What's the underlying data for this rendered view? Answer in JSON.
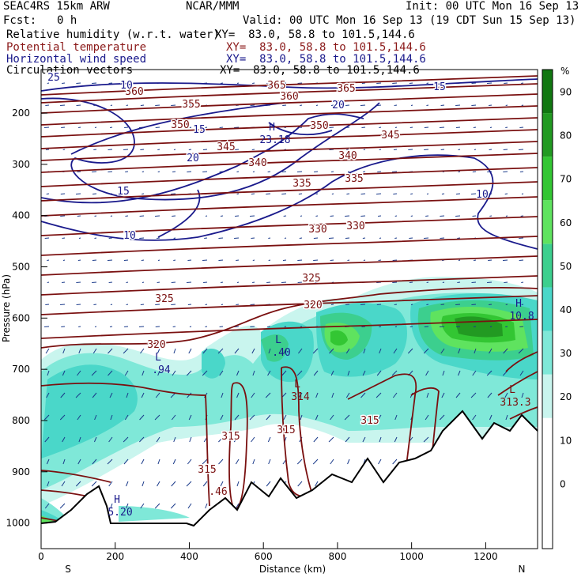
{
  "header": {
    "model": "SEAC4RS 15km ARW",
    "org": "NCAR/MMM",
    "init": "Init: 00 UTC Mon 16 Sep 13",
    "fcst_label": "Fcst:",
    "fcst_value": "0 h",
    "valid": "Valid: 00 UTC Mon 16 Sep 13 (19 CDT Sun 15 Sep 13)",
    "fields": [
      {
        "name": "Relative humidity (w.r.t. water)",
        "xy": "XY=  83.0, 58.8 to 101.5,144.6",
        "color": "#000000"
      },
      {
        "name": "Potential temperature",
        "xy": "XY=  83.0, 58.8 to 101.5,144.6",
        "color": "#8b1a1a"
      },
      {
        "name": "Horizontal wind speed",
        "xy": "XY=  83.0, 58.8 to 101.5,144.6",
        "color": "#1a1a8c"
      },
      {
        "name": "Circulation vectors",
        "xy": "XY=  83.0, 58.8 to 101.5,144.6",
        "color": "#000000"
      }
    ]
  },
  "chart_data": {
    "type": "heatmap",
    "title": "",
    "xlabel": "Distance (km)",
    "ylabel": "Pressure (hPa)",
    "x_ticks": [
      0,
      200,
      400,
      600,
      800,
      1000,
      1200
    ],
    "y_ticks": [
      200,
      300,
      400,
      500,
      600,
      700,
      800,
      900,
      1000
    ],
    "xlim": [
      0,
      1340
    ],
    "ylim": [
      1050,
      115
    ],
    "x_end_labels": {
      "left": "S",
      "right": "N"
    },
    "colorbar": {
      "unit": "%",
      "tick_labels": [
        "90",
        "80",
        "70",
        "60",
        "50",
        "40",
        "30",
        "20",
        "10",
        "0"
      ],
      "levels": [
        -10,
        0,
        10,
        20,
        30,
        40,
        50,
        60,
        70,
        80,
        90,
        100
      ],
      "colors": [
        "#ffffff",
        "#ffffff",
        "#ffffff",
        "#ffffff",
        "#c9f5ee",
        "#7fe8d8",
        "#4ad7c9",
        "#3ccf8e",
        "#5fe35f",
        "#33c633",
        "#229a22",
        "#117711"
      ]
    },
    "theta_labels": [
      "365",
      "360",
      "355",
      "350",
      "345",
      "340",
      "335",
      "330",
      "325",
      "320",
      "315"
    ],
    "wind_labels": [
      "10",
      "15",
      "20",
      "25"
    ],
    "point_labels": [
      {
        "kind": "H",
        "value": "23.18"
      },
      {
        "kind": "L",
        "value": ".94"
      },
      {
        "kind": "L",
        "value": ".40"
      },
      {
        "kind": "L",
        "value": "314"
      },
      {
        "kind": "H",
        "value": "10.8"
      },
      {
        "kind": "L",
        "value": "313.3"
      },
      {
        "kind": "H",
        "value": "5.20"
      },
      {
        "kind": "",
        "value": ".46"
      }
    ],
    "colors": {
      "theta": "#7a1010",
      "wind": "#1a1a8c",
      "terrain": "#000000"
    }
  }
}
